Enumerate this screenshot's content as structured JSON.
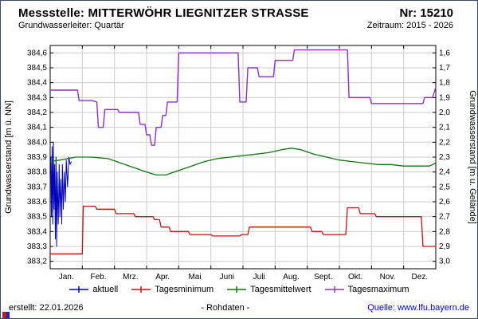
{
  "header": {
    "station_label": "Messstelle: MITTERWÖHR LIEGNITZER STRASSE",
    "number_label": "Nr: 15210",
    "aquifer_label": "Grundwasserleiter: Quartär",
    "period_label": "Zeitraum: 2015 - 2026"
  },
  "chart_data": {
    "type": "line",
    "title": "",
    "xlabel": "",
    "ylabel_left": "Grundwasserstand [m ü. NN]",
    "ylabel_right": "Grundwasserstand [m u. Gelände]",
    "grid": true,
    "legend_position": "bottom",
    "x_tick_labels": [
      "Jan.",
      "Feb.",
      "Mrz.",
      "Apr.",
      "Mai",
      "Juni",
      "Juli",
      "Aug.",
      "Sept.",
      "Okt.",
      "Nov.",
      "Dez."
    ],
    "y_left_tick_labels": [
      "384,6",
      "384,5",
      "384,4",
      "384,3",
      "384,2",
      "384,1",
      "384,0",
      "383,9",
      "383,8",
      "383,7",
      "383,6",
      "383,5",
      "383,4",
      "383,3",
      "383,2"
    ],
    "y_right_tick_labels": [
      "1,6",
      "1,7",
      "1,8",
      "1,9",
      "2,0",
      "2,1",
      "2,2",
      "2,3",
      "2,4",
      "2,5",
      "2,6",
      "2,7",
      "2,8",
      "2,9",
      "3,0"
    ],
    "y_left_domain": [
      383.15,
      384.65
    ],
    "y_tick_start": 384.6,
    "y_tick_step": 0.1,
    "x_domain_months": 12,
    "colors": {
      "grid": "#cccccc",
      "frame": "#000000"
    },
    "series": [
      {
        "name": "aktuell",
        "color": "#0000bb",
        "width": 1,
        "points": [
          [
            0.02,
            383.9
          ],
          [
            0.04,
            383.5
          ],
          [
            0.06,
            383.97
          ],
          [
            0.08,
            383.45
          ],
          [
            0.1,
            384.0
          ],
          [
            0.12,
            383.55
          ],
          [
            0.14,
            383.85
          ],
          [
            0.16,
            383.35
          ],
          [
            0.18,
            383.9
          ],
          [
            0.2,
            383.3
          ],
          [
            0.22,
            383.8
          ],
          [
            0.25,
            383.45
          ],
          [
            0.28,
            383.85
          ],
          [
            0.3,
            383.5
          ],
          [
            0.33,
            383.75
          ],
          [
            0.36,
            383.45
          ],
          [
            0.38,
            383.85
          ],
          [
            0.41,
            383.55
          ],
          [
            0.44,
            383.8
          ],
          [
            0.47,
            383.6
          ],
          [
            0.5,
            383.88
          ],
          [
            0.54,
            383.7
          ],
          [
            0.58,
            383.9
          ],
          [
            0.62,
            383.85
          ],
          [
            0.66,
            383.87
          ]
        ]
      },
      {
        "name": "Tagesminimum",
        "color": "#cc1111",
        "width": 1.3,
        "points": [
          [
            0,
            383.25
          ],
          [
            1.0,
            383.25
          ],
          [
            1.03,
            383.57
          ],
          [
            1.4,
            383.57
          ],
          [
            1.45,
            383.55
          ],
          [
            2.0,
            383.55
          ],
          [
            2.05,
            383.52
          ],
          [
            2.6,
            383.52
          ],
          [
            2.65,
            383.5
          ],
          [
            3.2,
            383.5
          ],
          [
            3.25,
            383.48
          ],
          [
            3.4,
            383.48
          ],
          [
            3.45,
            383.43
          ],
          [
            3.7,
            383.43
          ],
          [
            3.75,
            383.4
          ],
          [
            4.3,
            383.4
          ],
          [
            4.35,
            383.38
          ],
          [
            5.0,
            383.38
          ],
          [
            5.05,
            383.37
          ],
          [
            5.9,
            383.37
          ],
          [
            5.95,
            383.38
          ],
          [
            6.15,
            383.38
          ],
          [
            6.2,
            383.43
          ],
          [
            8.1,
            383.43
          ],
          [
            8.15,
            383.4
          ],
          [
            8.45,
            383.4
          ],
          [
            8.5,
            383.38
          ],
          [
            9.2,
            383.38
          ],
          [
            9.25,
            383.56
          ],
          [
            9.6,
            383.56
          ],
          [
            9.65,
            383.52
          ],
          [
            10.1,
            383.52
          ],
          [
            10.15,
            383.5
          ],
          [
            11.55,
            383.5
          ],
          [
            11.6,
            383.3
          ],
          [
            12,
            383.3
          ]
        ]
      },
      {
        "name": "Tagesmittelwert",
        "color": "#117711",
        "width": 1.3,
        "points": [
          [
            0,
            383.87
          ],
          [
            0.3,
            383.88
          ],
          [
            0.8,
            383.9
          ],
          [
            1.3,
            383.9
          ],
          [
            1.8,
            383.89
          ],
          [
            2.2,
            383.86
          ],
          [
            2.6,
            383.83
          ],
          [
            3.0,
            383.8
          ],
          [
            3.3,
            383.78
          ],
          [
            3.6,
            383.78
          ],
          [
            4.0,
            383.81
          ],
          [
            4.4,
            383.84
          ],
          [
            4.8,
            383.87
          ],
          [
            5.2,
            383.89
          ],
          [
            5.6,
            383.9
          ],
          [
            6.0,
            383.91
          ],
          [
            6.4,
            383.92
          ],
          [
            6.8,
            383.93
          ],
          [
            7.2,
            383.95
          ],
          [
            7.5,
            383.96
          ],
          [
            7.8,
            383.95
          ],
          [
            8.2,
            383.92
          ],
          [
            8.6,
            383.9
          ],
          [
            9.0,
            383.88
          ],
          [
            9.4,
            383.87
          ],
          [
            9.8,
            383.86
          ],
          [
            10.2,
            383.85
          ],
          [
            10.6,
            383.85
          ],
          [
            11.0,
            383.84
          ],
          [
            11.4,
            383.84
          ],
          [
            11.8,
            383.84
          ],
          [
            12,
            383.86
          ]
        ]
      },
      {
        "name": "Tagesmaximum",
        "color": "#8833cc",
        "width": 1.4,
        "points": [
          [
            0,
            384.35
          ],
          [
            0.85,
            384.35
          ],
          [
            0.9,
            384.28
          ],
          [
            1.3,
            384.28
          ],
          [
            1.45,
            384.27
          ],
          [
            1.5,
            384.1
          ],
          [
            1.65,
            384.1
          ],
          [
            1.7,
            384.22
          ],
          [
            2.1,
            384.22
          ],
          [
            2.15,
            384.2
          ],
          [
            2.75,
            384.2
          ],
          [
            2.8,
            384.12
          ],
          [
            2.95,
            384.12
          ],
          [
            3.0,
            384.05
          ],
          [
            3.1,
            384.05
          ],
          [
            3.15,
            383.98
          ],
          [
            3.25,
            383.98
          ],
          [
            3.3,
            384.1
          ],
          [
            3.45,
            384.1
          ],
          [
            3.5,
            384.18
          ],
          [
            3.6,
            384.18
          ],
          [
            3.65,
            384.27
          ],
          [
            3.95,
            384.27
          ],
          [
            4.0,
            384.6
          ],
          [
            5.85,
            384.6
          ],
          [
            5.9,
            384.27
          ],
          [
            6.1,
            384.27
          ],
          [
            6.15,
            384.5
          ],
          [
            6.45,
            384.5
          ],
          [
            6.5,
            384.44
          ],
          [
            6.95,
            384.44
          ],
          [
            7.0,
            384.55
          ],
          [
            7.55,
            384.55
          ],
          [
            7.6,
            384.62
          ],
          [
            9.25,
            384.62
          ],
          [
            9.3,
            384.3
          ],
          [
            9.95,
            384.3
          ],
          [
            10.0,
            384.26
          ],
          [
            11.6,
            384.26
          ],
          [
            11.65,
            384.3
          ],
          [
            11.9,
            384.3
          ],
          [
            12,
            384.37
          ]
        ]
      }
    ]
  },
  "footer": {
    "created_label": "erstellt:  22.01.2026",
    "rohdaten_label": "- Rohdaten -",
    "source_label": "Quelle: www.lfu.bayern.de"
  }
}
